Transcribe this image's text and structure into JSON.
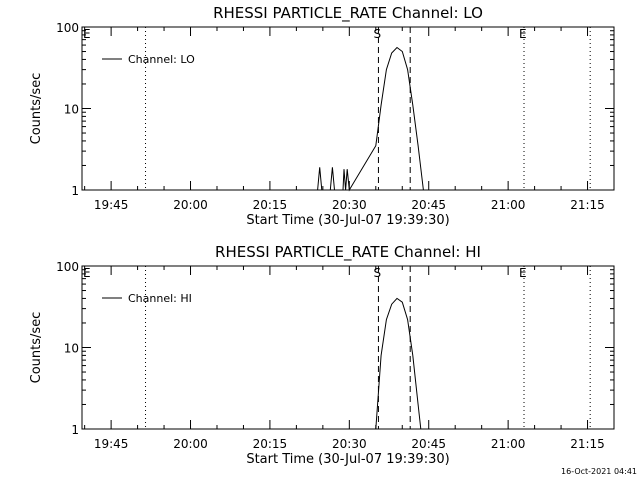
{
  "chart_data": [
    {
      "type": "line",
      "title": "RHESSI PARTICLE_RATE Channel: LO",
      "xlabel": "Start Time (30-Jul-07 19:39:30)",
      "ylabel": "Counts/sec",
      "yscale": "log",
      "ylim": [
        1,
        100
      ],
      "xlim": [
        "19:39:30",
        "21:20:00"
      ],
      "x_tick_labels": [
        "19:45",
        "20:00",
        "20:15",
        "20:30",
        "20:45",
        "21:00",
        "21:15"
      ],
      "y_tick_labels": [
        "1",
        "10",
        "100"
      ],
      "legend": {
        "position": "top-left",
        "label": "Channel: LO"
      },
      "markers": [
        {
          "label": "E",
          "time": "19:39:30",
          "style": "none"
        },
        {
          "label": "",
          "time": "19:51:30",
          "style": "dotted"
        },
        {
          "label": "S",
          "time": "20:35:30",
          "style": "dashed"
        },
        {
          "label": "",
          "time": "20:41:30",
          "style": "dashed"
        },
        {
          "label": "E",
          "time": "21:03:00",
          "style": "dotted"
        },
        {
          "label": "",
          "time": "21:15:30",
          "style": "dotted"
        }
      ],
      "series": [
        {
          "points": [
            [
              "20:24:00",
              1
            ],
            [
              "20:24:24",
              1.9
            ],
            [
              "20:24:48",
              1
            ],
            [
              "20:26:24",
              1
            ],
            [
              "20:26:48",
              1.9
            ],
            [
              "20:27:12",
              1
            ],
            [
              "20:28:48",
              1
            ],
            [
              "20:29:00",
              1.8
            ],
            [
              "20:29:18",
              1
            ],
            [
              "20:29:36",
              1.8
            ],
            [
              "20:30:00",
              1
            ],
            [
              "20:35:00",
              3.5
            ],
            [
              "20:36:00",
              11
            ],
            [
              "20:37:00",
              30
            ],
            [
              "20:38:00",
              48
            ],
            [
              "20:39:00",
              56
            ],
            [
              "20:40:00",
              50
            ],
            [
              "20:41:00",
              30
            ],
            [
              "20:42:00",
              11
            ],
            [
              "20:43:00",
              3.5
            ],
            [
              "20:44:00",
              1
            ]
          ]
        }
      ]
    },
    {
      "type": "line",
      "title": "RHESSI PARTICLE_RATE Channel: HI",
      "xlabel": "Start Time (30-Jul-07 19:39:30)",
      "ylabel": "Counts/sec",
      "yscale": "log",
      "ylim": [
        1,
        100
      ],
      "xlim": [
        "19:39:30",
        "21:20:00"
      ],
      "x_tick_labels": [
        "19:45",
        "20:00",
        "20:15",
        "20:30",
        "20:45",
        "21:00",
        "21:15"
      ],
      "y_tick_labels": [
        "1",
        "10",
        "100"
      ],
      "legend": {
        "position": "top-left",
        "label": "Channel: HI"
      },
      "markers": [
        {
          "label": "E",
          "time": "19:39:30",
          "style": "none"
        },
        {
          "label": "",
          "time": "19:51:30",
          "style": "dotted"
        },
        {
          "label": "S",
          "time": "20:35:30",
          "style": "dashed"
        },
        {
          "label": "",
          "time": "20:41:30",
          "style": "dashed"
        },
        {
          "label": "E",
          "time": "21:03:00",
          "style": "dotted"
        },
        {
          "label": "",
          "time": "21:15:30",
          "style": "dotted"
        }
      ],
      "series": [
        {
          "points": [
            [
              "20:35:00",
              1
            ],
            [
              "20:36:00",
              8
            ],
            [
              "20:37:00",
              22
            ],
            [
              "20:38:00",
              34
            ],
            [
              "20:39:00",
              40
            ],
            [
              "20:40:00",
              36
            ],
            [
              "20:41:00",
              22
            ],
            [
              "20:42:00",
              8
            ],
            [
              "20:43:00",
              2
            ],
            [
              "20:43:30",
              1
            ]
          ]
        }
      ]
    }
  ],
  "footer": {
    "timestamp": "16-Oct-2021 04:41"
  }
}
